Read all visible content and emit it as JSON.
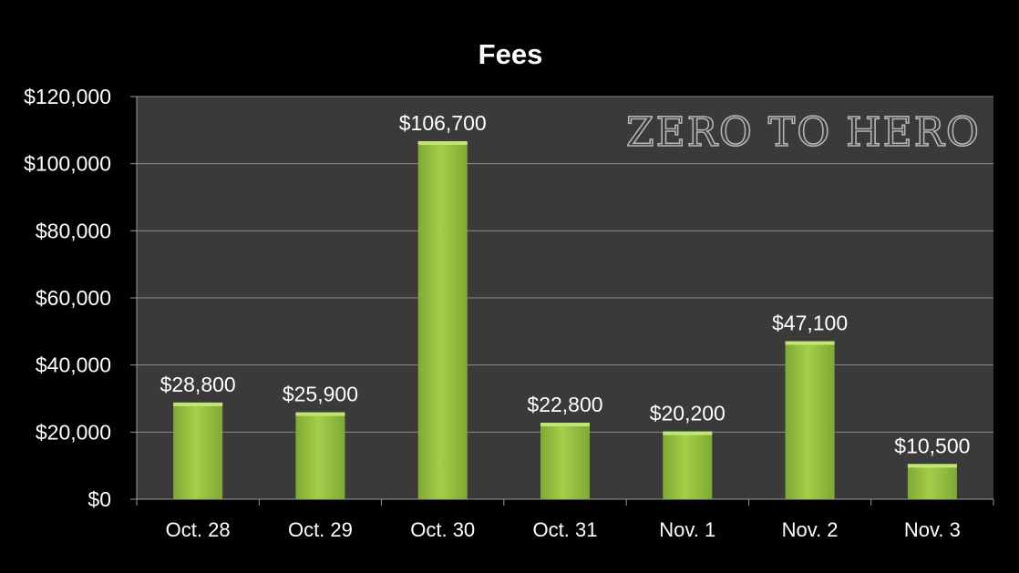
{
  "chart_data": {
    "type": "bar",
    "title": "Fees",
    "xlabel": "",
    "ylabel": "",
    "categories": [
      "Oct. 28",
      "Oct. 29",
      "Oct. 30",
      "Oct. 31",
      "Nov. 1",
      "Nov. 2",
      "Nov. 3"
    ],
    "values": [
      28800,
      25900,
      106700,
      22800,
      20200,
      47100,
      10500
    ],
    "data_labels": [
      "$28,800",
      "$25,900",
      "$106,700",
      "$22,800",
      "$20,200",
      "$47,100",
      "$10,500"
    ],
    "ylim": [
      0,
      120000
    ],
    "yticks": [
      0,
      20000,
      40000,
      60000,
      80000,
      100000,
      120000
    ],
    "ytick_labels": [
      "$0",
      "$20,000",
      "$40,000",
      "$60,000",
      "$80,000",
      "$100,000",
      "$120,000"
    ],
    "grid": true,
    "legend": "none",
    "colors": {
      "background": "#000000",
      "plot_area": "#3a3a3a",
      "bar": "#93c13e",
      "bar_highlight": "#c2e57a",
      "gridline": "#8a8a8a",
      "text": "#ffffff"
    }
  },
  "watermark": "ZERO TO HERO"
}
